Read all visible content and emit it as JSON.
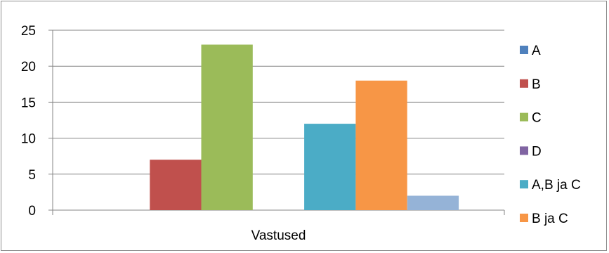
{
  "chart_data": {
    "type": "bar",
    "categories": [
      "Vastused"
    ],
    "series": [
      {
        "name": "A",
        "values": [
          0
        ],
        "color": "#4f81bd"
      },
      {
        "name": "B",
        "values": [
          7
        ],
        "color": "#c0504d"
      },
      {
        "name": "C",
        "values": [
          23
        ],
        "color": "#9bbb59"
      },
      {
        "name": "D",
        "values": [
          0
        ],
        "color": "#8064a2"
      },
      {
        "name": "A,B ja C",
        "values": [
          12
        ],
        "color": "#4bacc6"
      },
      {
        "name": "B ja C",
        "values": [
          18
        ],
        "color": "#f79646"
      },
      {
        "name": "",
        "values": [
          2
        ],
        "color": "#95b3d7"
      }
    ],
    "yticks": [
      0,
      5,
      10,
      15,
      20,
      25
    ],
    "ylim": [
      0,
      25
    ],
    "grid": true,
    "legend_position": "right",
    "title": "",
    "xlabel": "",
    "ylabel": ""
  }
}
